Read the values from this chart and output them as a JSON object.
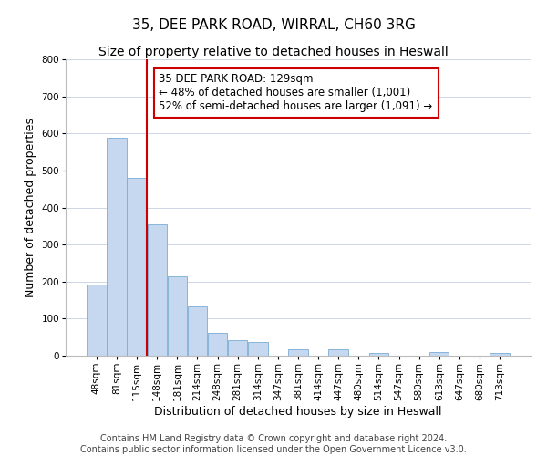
{
  "title": "35, DEE PARK ROAD, WIRRAL, CH60 3RG",
  "subtitle": "Size of property relative to detached houses in Heswall",
  "xlabel": "Distribution of detached houses by size in Heswall",
  "ylabel": "Number of detached properties",
  "categories": [
    "48sqm",
    "81sqm",
    "115sqm",
    "148sqm",
    "181sqm",
    "214sqm",
    "248sqm",
    "281sqm",
    "314sqm",
    "347sqm",
    "381sqm",
    "414sqm",
    "447sqm",
    "480sqm",
    "514sqm",
    "547sqm",
    "580sqm",
    "613sqm",
    "647sqm",
    "680sqm",
    "713sqm"
  ],
  "values": [
    193,
    588,
    480,
    355,
    215,
    133,
    62,
    42,
    36,
    0,
    17,
    0,
    17,
    0,
    8,
    0,
    0,
    10,
    0,
    0,
    7
  ],
  "bar_color": "#c5d8ef",
  "bar_edge_color": "#7aadd4",
  "bar_width": 0.97,
  "vline_x": 2.5,
  "vline_color": "#cc0000",
  "ylim": [
    0,
    800
  ],
  "yticks": [
    0,
    100,
    200,
    300,
    400,
    500,
    600,
    700,
    800
  ],
  "annotation_text": "35 DEE PARK ROAD: 129sqm\n← 48% of detached houses are smaller (1,001)\n52% of semi-detached houses are larger (1,091) →",
  "annotation_box_color": "#ffffff",
  "annotation_box_edge_color": "#cc0000",
  "footer_line1": "Contains HM Land Registry data © Crown copyright and database right 2024.",
  "footer_line2": "Contains public sector information licensed under the Open Government Licence v3.0.",
  "background_color": "#ffffff",
  "grid_color": "#ccd6e8",
  "title_fontsize": 11,
  "subtitle_fontsize": 10,
  "axis_label_fontsize": 9,
  "tick_fontsize": 7.5,
  "annotation_fontsize": 8.5,
  "footer_fontsize": 7
}
